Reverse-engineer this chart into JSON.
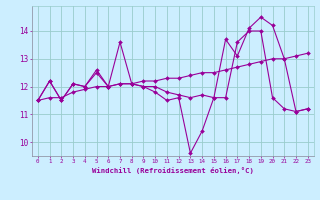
{
  "xlabel": "Windchill (Refroidissement éolien,°C)",
  "x": [
    0,
    1,
    2,
    3,
    4,
    5,
    6,
    7,
    8,
    9,
    10,
    11,
    12,
    13,
    14,
    15,
    16,
    17,
    18,
    19,
    20,
    21,
    22,
    23
  ],
  "line1": [
    11.5,
    12.2,
    11.5,
    12.1,
    12.0,
    12.6,
    12.0,
    13.6,
    12.1,
    12.0,
    11.8,
    11.5,
    11.6,
    9.6,
    10.4,
    11.6,
    13.7,
    13.1,
    14.1,
    14.5,
    14.2,
    13.0,
    11.1,
    11.2
  ],
  "line2": [
    11.5,
    11.6,
    11.6,
    11.8,
    11.9,
    12.0,
    12.0,
    12.1,
    12.1,
    12.2,
    12.2,
    12.3,
    12.3,
    12.4,
    12.5,
    12.5,
    12.6,
    12.7,
    12.8,
    12.9,
    13.0,
    13.0,
    13.1,
    13.2
  ],
  "line3": [
    11.5,
    12.2,
    11.5,
    12.1,
    12.0,
    12.5,
    12.0,
    12.1,
    12.1,
    12.0,
    12.0,
    11.8,
    11.7,
    11.6,
    11.7,
    11.6,
    11.6,
    13.6,
    14.0,
    14.0,
    11.6,
    11.2,
    11.1,
    11.2
  ],
  "line_color": "#990099",
  "bg_color": "#cceeff",
  "grid_color": "#99cccc",
  "tick_color": "#990099",
  "ylim": [
    9.5,
    14.9
  ],
  "xlim": [
    -0.5,
    23.5
  ],
  "yticks": [
    10,
    11,
    12,
    13,
    14
  ],
  "xticks": [
    0,
    1,
    2,
    3,
    4,
    5,
    6,
    7,
    8,
    9,
    10,
    11,
    12,
    13,
    14,
    15,
    16,
    17,
    18,
    19,
    20,
    21,
    22,
    23
  ]
}
